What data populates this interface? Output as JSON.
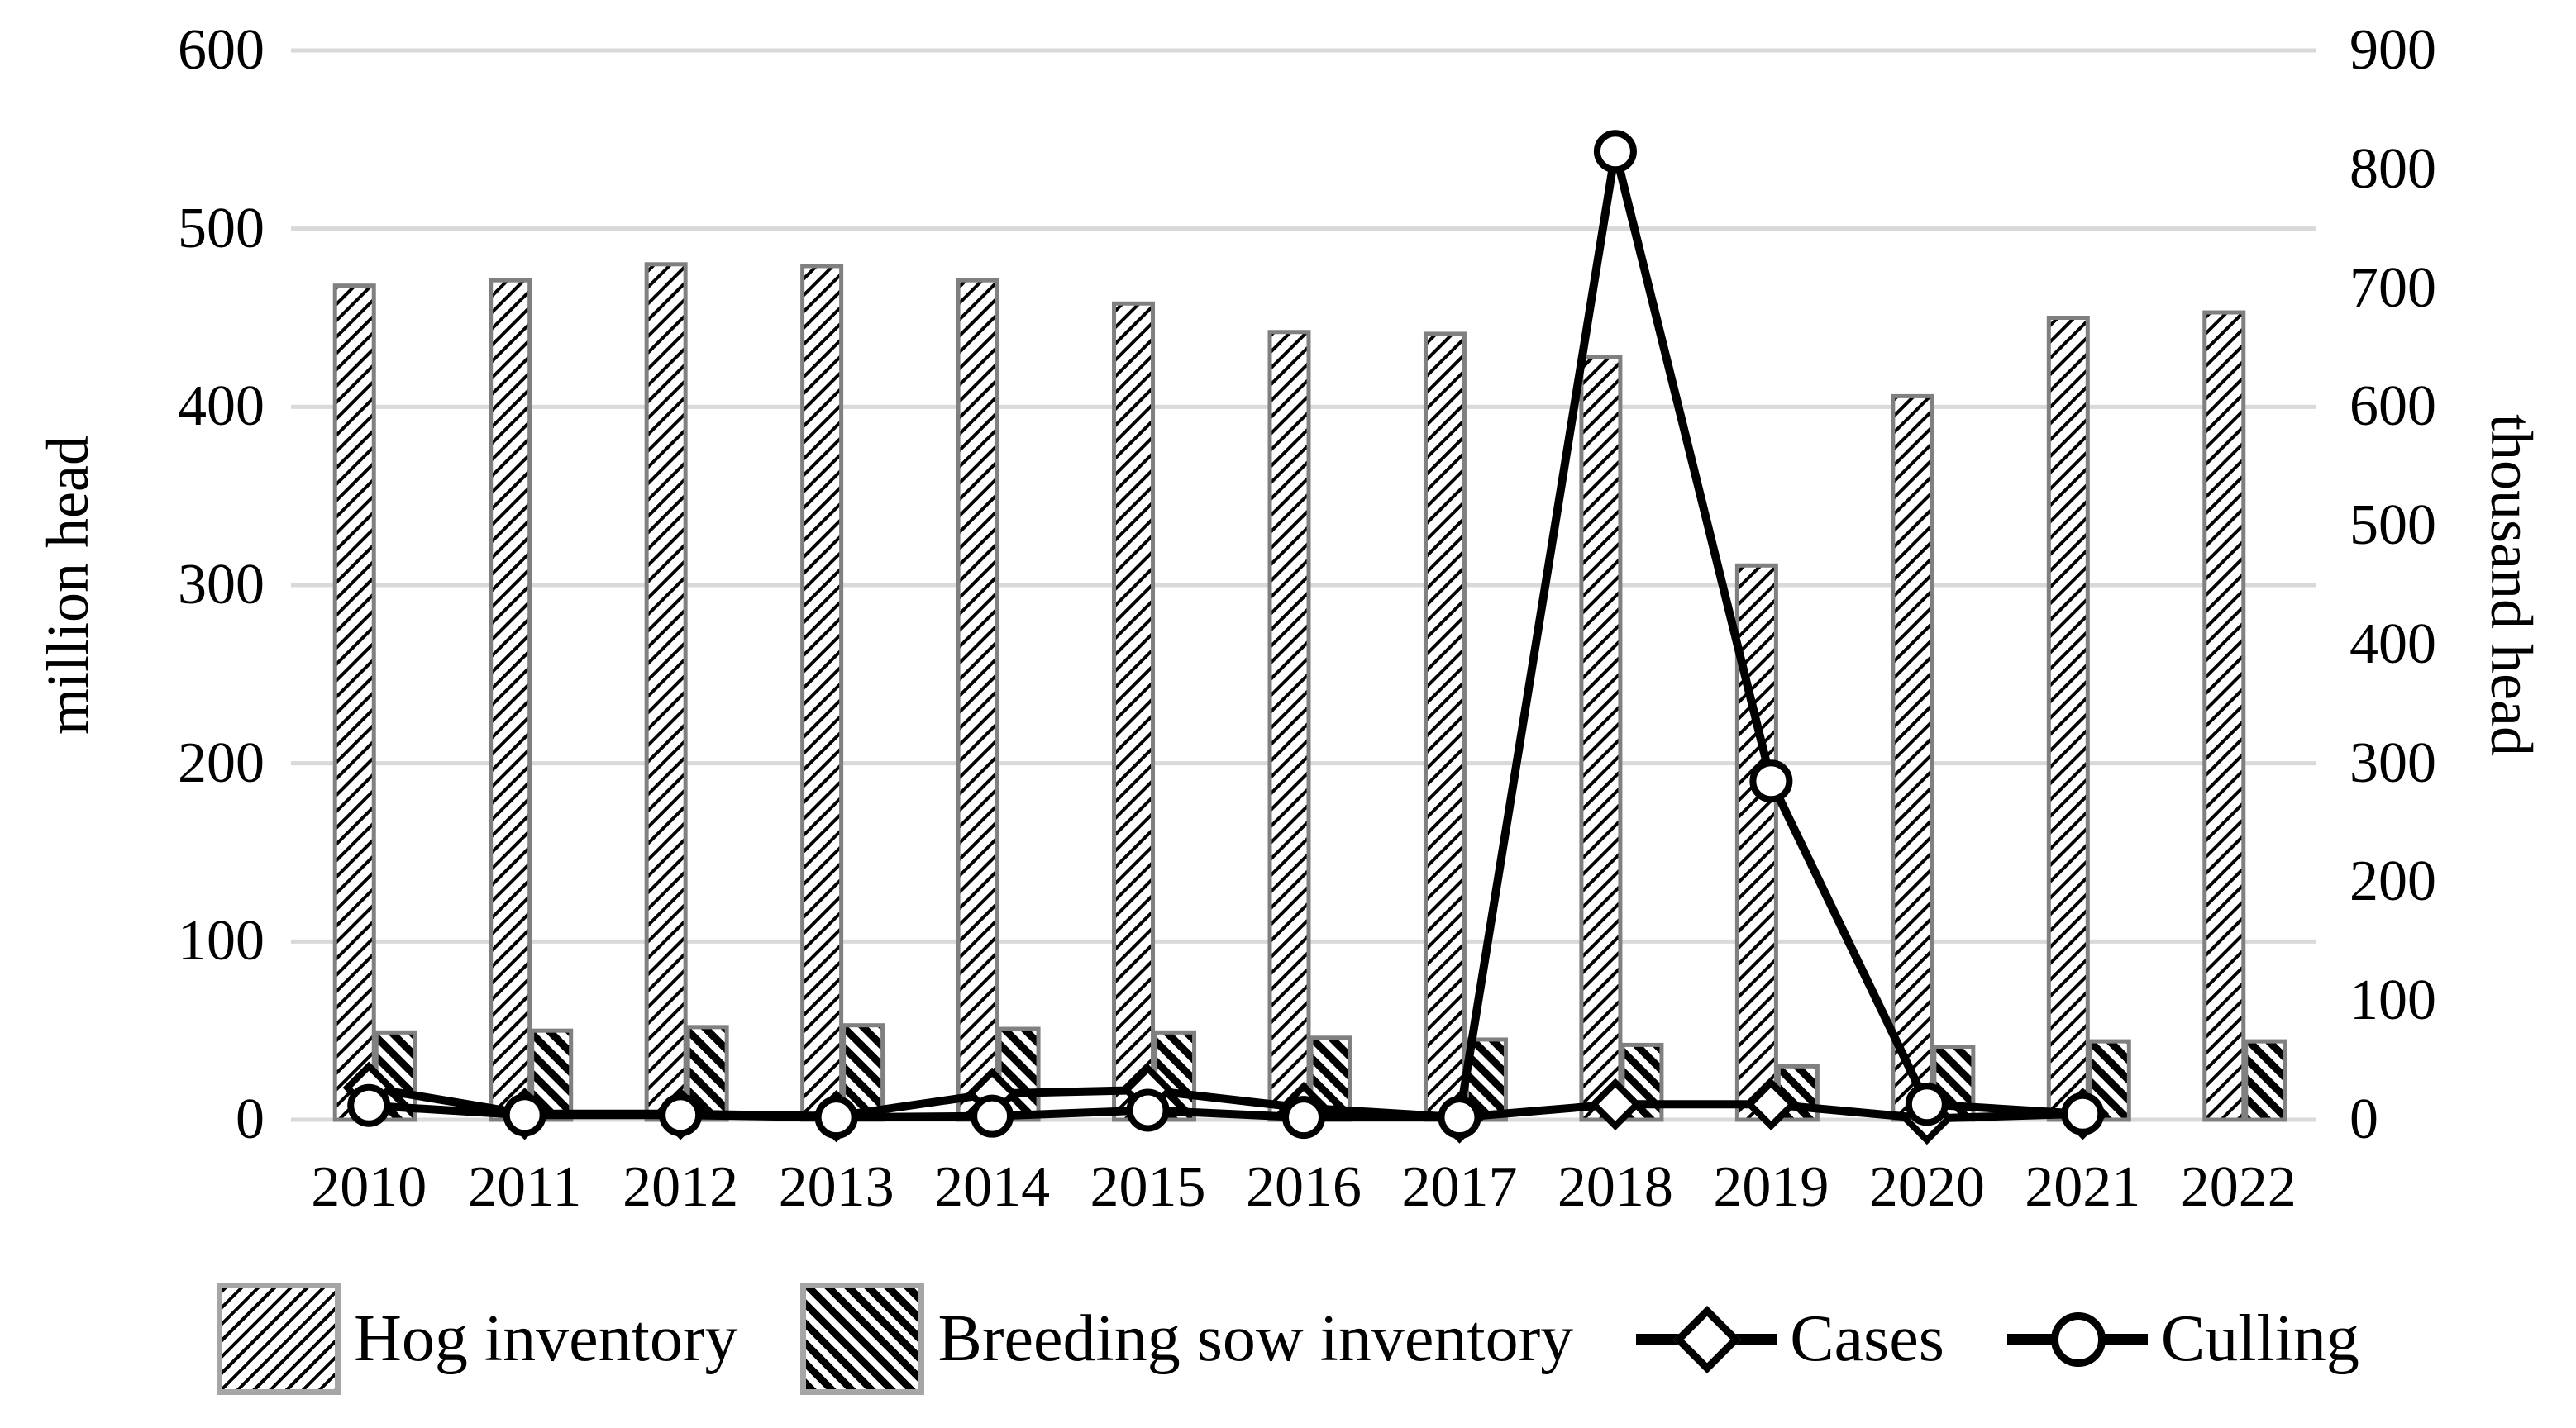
{
  "chart_data": {
    "type": "bar-line-combo",
    "categories": [
      "2010",
      "2011",
      "2012",
      "2013",
      "2014",
      "2015",
      "2016",
      "2017",
      "2018",
      "2019",
      "2020",
      "2021",
      "2022"
    ],
    "left_axis": {
      "label": "million head",
      "min": 0,
      "max": 600,
      "tick_step": 100,
      "ticks": [
        0,
        100,
        200,
        300,
        400,
        500,
        600
      ]
    },
    "right_axis": {
      "label": "thousand head",
      "min": 0,
      "max": 900,
      "tick_step": 100,
      "ticks": [
        0,
        100,
        200,
        300,
        400,
        500,
        600,
        700,
        800,
        900
      ]
    },
    "series": [
      {
        "name": "Hog inventory",
        "type": "bar",
        "axis": "left",
        "hatch": "thin-diagonal-up",
        "values": [
          468,
          471,
          480,
          479,
          471,
          458,
          442,
          441,
          428,
          311,
          406,
          450,
          453
        ]
      },
      {
        "name": "Breeding sow inventory",
        "type": "bar",
        "axis": "left",
        "hatch": "thick-diagonal-down",
        "values": [
          49,
          50,
          52,
          53,
          51,
          49,
          46,
          45,
          42,
          30,
          41,
          44,
          44
        ]
      },
      {
        "name": "Cases",
        "type": "line",
        "axis": "right",
        "marker": "diamond",
        "values": [
          27,
          5,
          5,
          3,
          22,
          25,
          10,
          2,
          13,
          13,
          1,
          5,
          null
        ]
      },
      {
        "name": "Culling",
        "type": "line",
        "axis": "right",
        "marker": "circle",
        "values": [
          12,
          4,
          4,
          2,
          3,
          8,
          2,
          2,
          815,
          285,
          13,
          5,
          null
        ]
      }
    ],
    "grid": true,
    "legend_position": "bottom",
    "colors": {
      "grid": "#d9d9d9",
      "bar_outline": "#808080",
      "line": "#000000",
      "marker_fill": "#ffffff",
      "text": "#000000",
      "background": "#ffffff"
    }
  }
}
